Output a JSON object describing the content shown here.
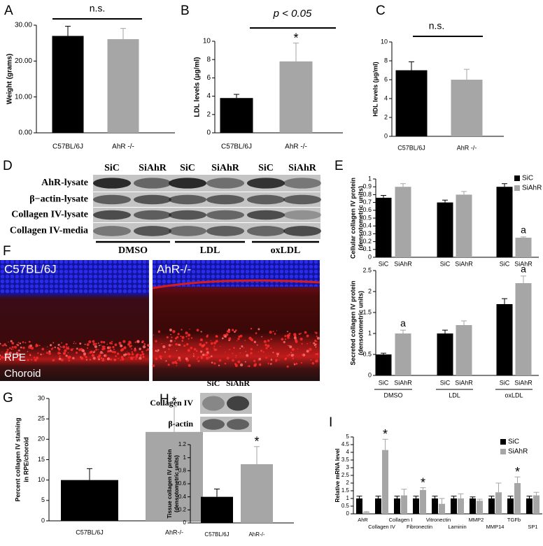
{
  "chart_data": [
    {
      "type": "bar",
      "panel": "A",
      "ylabel": [
        "Weight (grams)"
      ],
      "categories": [
        "C57BL/6J",
        "AhR -/-"
      ],
      "values": [
        27.0,
        26.1
      ],
      "errors": [
        2.7,
        3.0
      ],
      "colors": [
        "#000000",
        "#a6a6a6"
      ],
      "ylim": [
        0,
        30
      ],
      "yticks": [
        {
          "value": 0,
          "label": "0.00"
        },
        {
          "value": 10,
          "label": "10.00"
        },
        {
          "value": 20,
          "label": "20.00"
        },
        {
          "value": 30,
          "label": "30.00"
        }
      ],
      "annotations": [
        "n.s."
      ]
    },
    {
      "type": "bar",
      "panel": "B",
      "ylabel": [
        "LDL levels (μg/ml)"
      ],
      "categories": [
        "C57BL/6J",
        "AhR -/-"
      ],
      "values": [
        3.8,
        7.8
      ],
      "errors": [
        0.4,
        2.0
      ],
      "colors": [
        "#000000",
        "#a6a6a6"
      ],
      "ylim": [
        0,
        10
      ],
      "yticks": [
        0,
        2,
        4,
        6,
        8,
        10
      ],
      "annotations": [
        "p < 0.05",
        "*"
      ]
    },
    {
      "type": "bar",
      "panel": "C",
      "ylabel": [
        "HDL levels (μg/ml)"
      ],
      "categories": [
        "C57BL/6J",
        "AhR -/-"
      ],
      "values": [
        7.0,
        6.0
      ],
      "errors": [
        0.9,
        1.1
      ],
      "colors": [
        "#000000",
        "#a6a6a6"
      ],
      "ylim": [
        0,
        10
      ],
      "yticks": [
        0,
        2,
        4,
        6,
        8,
        10
      ],
      "annotations": [
        "n.s."
      ]
    },
    {
      "type": "bar",
      "panel": "E",
      "ylabel": [
        "Cellular collagen IV protein",
        "(densotometric units)"
      ],
      "series": [
        {
          "name": "SiC",
          "color": "#000000",
          "values": [
            0.76,
            0.7,
            0.9
          ],
          "errors": [
            0.03,
            0.03,
            0.04
          ]
        },
        {
          "name": "SiAhR",
          "color": "#a6a6a6",
          "values": [
            0.9,
            0.8,
            0.25
          ],
          "errors": [
            0.04,
            0.04,
            0.01
          ]
        }
      ],
      "ylim": [
        0,
        1
      ],
      "yticks": [
        0,
        0.1,
        0.2,
        0.3,
        0.4,
        0.5,
        0.6,
        0.7,
        0.8,
        0.9,
        1
      ],
      "legend": "upper right",
      "annotations": [
        "a"
      ]
    },
    {
      "type": "bar",
      "ylabel": [
        "Secreted collagen IV protein",
        "(densotometric units)"
      ],
      "categories": [
        "DMSO",
        "LDL",
        "oxLDL"
      ],
      "series": [
        {
          "name": "SiC",
          "color": "#000000",
          "values": [
            0.5,
            1.0,
            1.7
          ],
          "errors": [
            0.03,
            0.08,
            0.13
          ]
        },
        {
          "name": "SiAhR",
          "color": "#a6a6a6",
          "values": [
            1.0,
            1.2,
            2.2
          ],
          "errors": [
            0.08,
            0.1,
            0.17
          ]
        }
      ],
      "ylim": [
        0,
        2.5
      ],
      "yticks": [
        0,
        0.5,
        1,
        1.5,
        2,
        2.5
      ],
      "annotations": [
        "a",
        "a"
      ]
    },
    {
      "type": "bar",
      "panel": "G",
      "ylabel": [
        "Percent  collagen IV staining",
        "in RPE/choroid"
      ],
      "categories": [
        "C57BL/6J",
        "AhR-/-"
      ],
      "values": [
        10.0,
        21.8
      ],
      "errors": [
        2.8,
        6.2
      ],
      "colors": [
        "#000000",
        "#a6a6a6"
      ],
      "ylim": [
        0,
        30
      ],
      "yticks": [
        0,
        5,
        10,
        15,
        20,
        25,
        30
      ],
      "annotations": [
        "*"
      ]
    },
    {
      "type": "bar",
      "panel": "H",
      "ylabel": [
        "Tissue collagen IV protein",
        "(densotometric units)"
      ],
      "categories": [
        "C57BL/6J",
        "AhR-/-"
      ],
      "values": [
        0.4,
        0.9
      ],
      "errors": [
        0.12,
        0.27
      ],
      "colors": [
        "#000000",
        "#a6a6a6"
      ],
      "ylim": [
        0,
        1.2
      ],
      "yticks": [
        0,
        0.2,
        0.4,
        0.6,
        0.8,
        1,
        1.2
      ],
      "annotations": [
        "*"
      ],
      "blot": {
        "lanes": [
          "SiC",
          "SiAhR"
        ],
        "rows": [
          "Collagen IV",
          "β-actin"
        ]
      }
    },
    {
      "type": "bar",
      "panel": "I",
      "ylabel": [
        "Relative mRNA level"
      ],
      "categories": [
        "AhR",
        "Collagen IV",
        "Collagen I",
        "Fibronectin",
        "Vitronectin",
        "Laminin",
        "MMP2",
        "MMP14",
        "TGFb",
        "SP1"
      ],
      "series": [
        {
          "name": "SiC",
          "color": "#000000",
          "values": [
            1,
            1,
            1,
            1,
            1,
            1,
            1,
            1,
            1,
            1
          ],
          "errors": [
            0.15,
            0.15,
            0.15,
            0.15,
            0.15,
            0.15,
            0.1,
            0.15,
            0.15,
            0.15
          ]
        },
        {
          "name": "SiAhR",
          "color": "#a6a6a6",
          "values": [
            0.1,
            4.15,
            1.2,
            1.55,
            0.65,
            1.0,
            0.85,
            1.4,
            2.0,
            1.2
          ],
          "errors": [
            0.05,
            0.7,
            0.4,
            0.15,
            0.35,
            0.3,
            0.1,
            0.6,
            0.4,
            0.2
          ]
        }
      ],
      "ylim": [
        0,
        5
      ],
      "yticks": [
        0,
        0.5,
        1,
        1.5,
        2,
        2.5,
        3,
        3.5,
        4,
        4.5,
        5
      ],
      "legend": "upper right",
      "annotations": [
        "*",
        "*",
        "*"
      ]
    }
  ],
  "blot_d": {
    "panel": "D",
    "lanes": [
      "SiC",
      "SiAhR",
      "SiC",
      "SiAhR",
      "SiC",
      "SiAhR"
    ],
    "rows": [
      "AhR-lysate",
      "β−actin-lysate",
      "Collagen IV-lysate",
      "Collagen IV-media"
    ],
    "groups": [
      "DMSO",
      "LDL",
      "oxLDL"
    ]
  },
  "image_f": {
    "panel": "F",
    "labels": [
      "C57BL/6J",
      "AhR-/-"
    ],
    "layers": [
      "RPE",
      "Choroid"
    ]
  }
}
